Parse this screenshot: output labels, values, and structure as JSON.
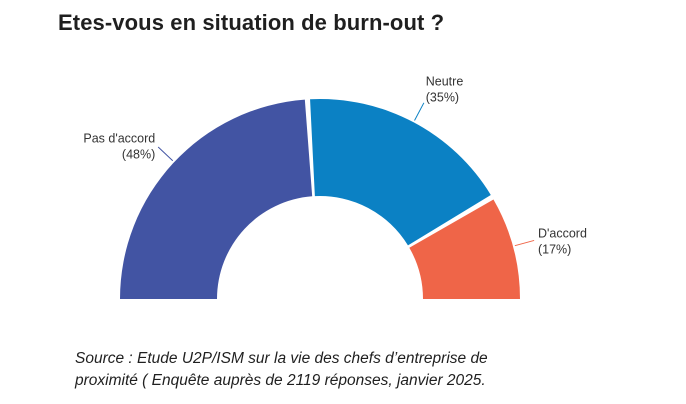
{
  "chart_data": {
    "type": "pie",
    "variant": "semi-donut",
    "title": "Etes-vous en situation de burn-out ?",
    "slices": [
      {
        "label": "Pas d'accord",
        "value": 48,
        "value_label": "(48%)",
        "color": "#4254a3"
      },
      {
        "label": "Neutre",
        "value": 35,
        "value_label": "(35%)",
        "color": "#0b81c4"
      },
      {
        "label": "D'accord",
        "value": 17,
        "value_label": "(17%)",
        "color": "#ef6548"
      }
    ],
    "unit": "%"
  },
  "source": {
    "line1": "Source : Etude U2P/ISM sur la vie des chefs d’entreprise de",
    "line2": "proximité ( Enquête auprès de 2119 réponses, janvier 2025."
  }
}
